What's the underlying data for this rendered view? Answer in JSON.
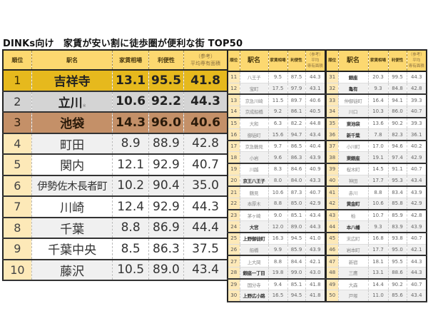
{
  "title": "DINKs向け　家賃が安い割に徒歩圏が便利な街 TOP50",
  "headers": {
    "rank": "順位",
    "station": "駅名",
    "rent": "家賃相場",
    "convenience": "利便性",
    "area_ref": "（参考）",
    "area": "平均専有面積",
    "area_small_1": "平均",
    "area_small_2": "専有面積"
  },
  "colors": {
    "header": "#fcd870",
    "gold": "#e6b91d",
    "silver": "#d4d4d4",
    "bronze": "#c49068",
    "rank_cell": "#fde9b8"
  },
  "main_rows": [
    {
      "rank": "1",
      "station": "吉祥寺",
      "mark": "",
      "rent": "13.1",
      "convenience": "95.5",
      "area": "41.8"
    },
    {
      "rank": "2",
      "station": "立川",
      "mark": "※",
      "rent": "10.6",
      "convenience": "92.2",
      "area": "44.3"
    },
    {
      "rank": "3",
      "station": "池袋",
      "mark": "",
      "rent": "14.3",
      "convenience": "96.0",
      "area": "40.6"
    },
    {
      "rank": "4",
      "station": "町田",
      "mark": "",
      "rent": "8.9",
      "convenience": "88.9",
      "area": "42.8"
    },
    {
      "rank": "5",
      "station": "関内",
      "mark": "",
      "rent": "12.1",
      "convenience": "92.9",
      "area": "40.7"
    },
    {
      "rank": "6",
      "station": "伊勢佐木長者町",
      "mark": "",
      "rent": "10.2",
      "convenience": "90.4",
      "area": "35.0"
    },
    {
      "rank": "7",
      "station": "川崎",
      "mark": "",
      "rent": "12.4",
      "convenience": "92.9",
      "area": "44.3"
    },
    {
      "rank": "8",
      "station": "千葉",
      "mark": "",
      "rent": "8.8",
      "convenience": "86.9",
      "area": "44.4"
    },
    {
      "rank": "9",
      "station": "千葉中央",
      "mark": "",
      "rent": "8.5",
      "convenience": "86.3",
      "area": "37.5"
    },
    {
      "rank": "10",
      "station": "藤沢",
      "mark": "",
      "rent": "10.5",
      "convenience": "89.0",
      "area": "43.4"
    }
  ],
  "mid_rows": [
    {
      "rank": "11",
      "station": "八王子",
      "rent": "9.5",
      "convenience": "87.5",
      "area": "44.3"
    },
    {
      "rank": "12",
      "station": "宝町",
      "rent": "17.5",
      "convenience": "97.9",
      "area": "43.1"
    },
    {
      "rank": "13",
      "station": "京急川崎",
      "rent": "11.5",
      "convenience": "89.7",
      "area": "40.6"
    },
    {
      "rank": "14",
      "station": "京成船橋",
      "rent": "9.2",
      "convenience": "86.1",
      "area": "40.5"
    },
    {
      "rank": "15",
      "station": "大和",
      "rent": "6.3",
      "convenience": "82.2",
      "area": "44.8"
    },
    {
      "rank": "16",
      "station": "御徒町",
      "rent": "15.6",
      "convenience": "94.7",
      "area": "43.4"
    },
    {
      "rank": "17",
      "station": "京急鶴見",
      "rent": "9.7",
      "convenience": "86.5",
      "area": "40.4"
    },
    {
      "rank": "18",
      "station": "小岩",
      "rent": "9.6",
      "convenience": "86.3",
      "area": "43.9"
    },
    {
      "rank": "19",
      "station": "川越",
      "rent": "8.3",
      "convenience": "84.6",
      "area": "40.9"
    },
    {
      "rank": "20",
      "station": "京王八王子",
      "rent": "8.0",
      "convenience": "84.0",
      "area": "43.3"
    },
    {
      "rank": "21",
      "station": "鶴見",
      "rent": "10.6",
      "convenience": "87.3",
      "area": "40.7"
    },
    {
      "rank": "22",
      "station": "本厚木",
      "rent": "8.8",
      "convenience": "85.0",
      "area": "42.9"
    },
    {
      "rank": "23",
      "station": "茅ヶ崎",
      "rent": "9.0",
      "convenience": "85.1",
      "area": "43.4"
    },
    {
      "rank": "24",
      "station": "大宮",
      "rent": "12.0",
      "convenience": "89.0",
      "area": "44.3"
    },
    {
      "rank": "25",
      "station": "上野御徒町",
      "rent": "16.3",
      "convenience": "94.5",
      "area": "41.0"
    },
    {
      "rank": "26",
      "station": "船橋",
      "rent": "9.9",
      "convenience": "85.9",
      "area": "43.9"
    },
    {
      "rank": "27",
      "station": "上大岡",
      "rent": "8.8",
      "convenience": "84.4",
      "area": "42.1"
    },
    {
      "rank": "28",
      "station": "銀座一丁目",
      "rent": "19.8",
      "convenience": "99.0",
      "area": "43.0"
    },
    {
      "rank": "29",
      "station": "国分寺",
      "rent": "9.4",
      "convenience": "85.1",
      "area": "41.8"
    },
    {
      "rank": "30",
      "station": "上野広小路",
      "rent": "16.5",
      "convenience": "94.5",
      "area": "41.8"
    }
  ],
  "right_rows": [
    {
      "rank": "31",
      "station": "銀座",
      "rent": "20.3",
      "convenience": "99.5",
      "area": "44.3"
    },
    {
      "rank": "32",
      "station": "亀有",
      "rent": "9.3",
      "convenience": "84.8",
      "area": "42.8"
    },
    {
      "rank": "33",
      "station": "仲御徒町",
      "rent": "16.4",
      "convenience": "94.1",
      "area": "39.3"
    },
    {
      "rank": "34",
      "station": "川口",
      "rent": "10.3",
      "convenience": "86.0",
      "area": "40.7"
    },
    {
      "rank": "35",
      "station": "東池袋",
      "rent": "13.6",
      "convenience": "90.2",
      "area": "39.3"
    },
    {
      "rank": "36",
      "station": "新千葉",
      "rent": "7.8",
      "convenience": "82.3",
      "area": "36.1"
    },
    {
      "rank": "37",
      "station": "小川町",
      "rent": "17.0",
      "convenience": "94.6",
      "area": "40.2"
    },
    {
      "rank": "38",
      "station": "東銀座",
      "rent": "19.1",
      "convenience": "97.4",
      "area": "42.9"
    },
    {
      "rank": "39",
      "station": "桜木町",
      "rent": "14.5",
      "convenience": "91.1",
      "area": "40.7"
    },
    {
      "rank": "40",
      "station": "神田",
      "rent": "17.7",
      "convenience": "95.3",
      "area": "43.4"
    },
    {
      "rank": "41",
      "station": "赤川",
      "rent": "8.8",
      "convenience": "83.4",
      "area": "43.9"
    },
    {
      "rank": "42",
      "station": "黄金町",
      "rent": "10.6",
      "convenience": "85.8",
      "area": "42.9"
    },
    {
      "rank": "43",
      "station": "柏",
      "rent": "10.7",
      "convenience": "85.9",
      "area": "42.8"
    },
    {
      "rank": "44",
      "station": "本八幡",
      "rent": "9.3",
      "convenience": "83.9",
      "area": "43.9"
    },
    {
      "rank": "45",
      "station": "末広町",
      "rent": "16.8",
      "convenience": "93.8",
      "area": "40.7"
    },
    {
      "rank": "46",
      "station": "岩本町",
      "rent": "17.7",
      "convenience": "95.0",
      "area": "42.1"
    },
    {
      "rank": "47",
      "station": "新宿",
      "rent": "18.1",
      "convenience": "95.5",
      "area": "44.3"
    },
    {
      "rank": "48",
      "station": "三鷹",
      "rent": "13.1",
      "convenience": "88.6",
      "area": "44.3"
    },
    {
      "rank": "49",
      "station": "大森",
      "rent": "14.4",
      "convenience": "90.2",
      "area": "40.7"
    },
    {
      "rank": "50",
      "station": "戸塚",
      "rent": "11.0",
      "convenience": "85.6",
      "area": "43.4"
    }
  ]
}
